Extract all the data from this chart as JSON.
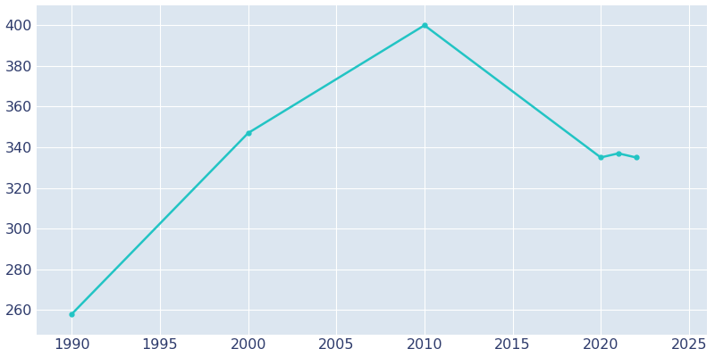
{
  "years": [
    1990,
    2000,
    2010,
    2020,
    2021,
    2022
  ],
  "population": [
    258,
    347,
    400,
    335,
    337,
    335
  ],
  "line_color": "#22c4c4",
  "line_width": 1.8,
  "marker": "o",
  "marker_size": 3.5,
  "fig_bg_color": "#ffffff",
  "plot_bg_color": "#dce6f0",
  "grid_color": "#ffffff",
  "xlim": [
    1988,
    2026
  ],
  "ylim": [
    248,
    410
  ],
  "xticks": [
    1990,
    1995,
    2000,
    2005,
    2010,
    2015,
    2020,
    2025
  ],
  "yticks": [
    260,
    280,
    300,
    320,
    340,
    360,
    380,
    400
  ],
  "tick_color": "#2d3a6b",
  "tick_fontsize": 11.5,
  "figsize": [
    8.0,
    4.0
  ],
  "dpi": 100
}
